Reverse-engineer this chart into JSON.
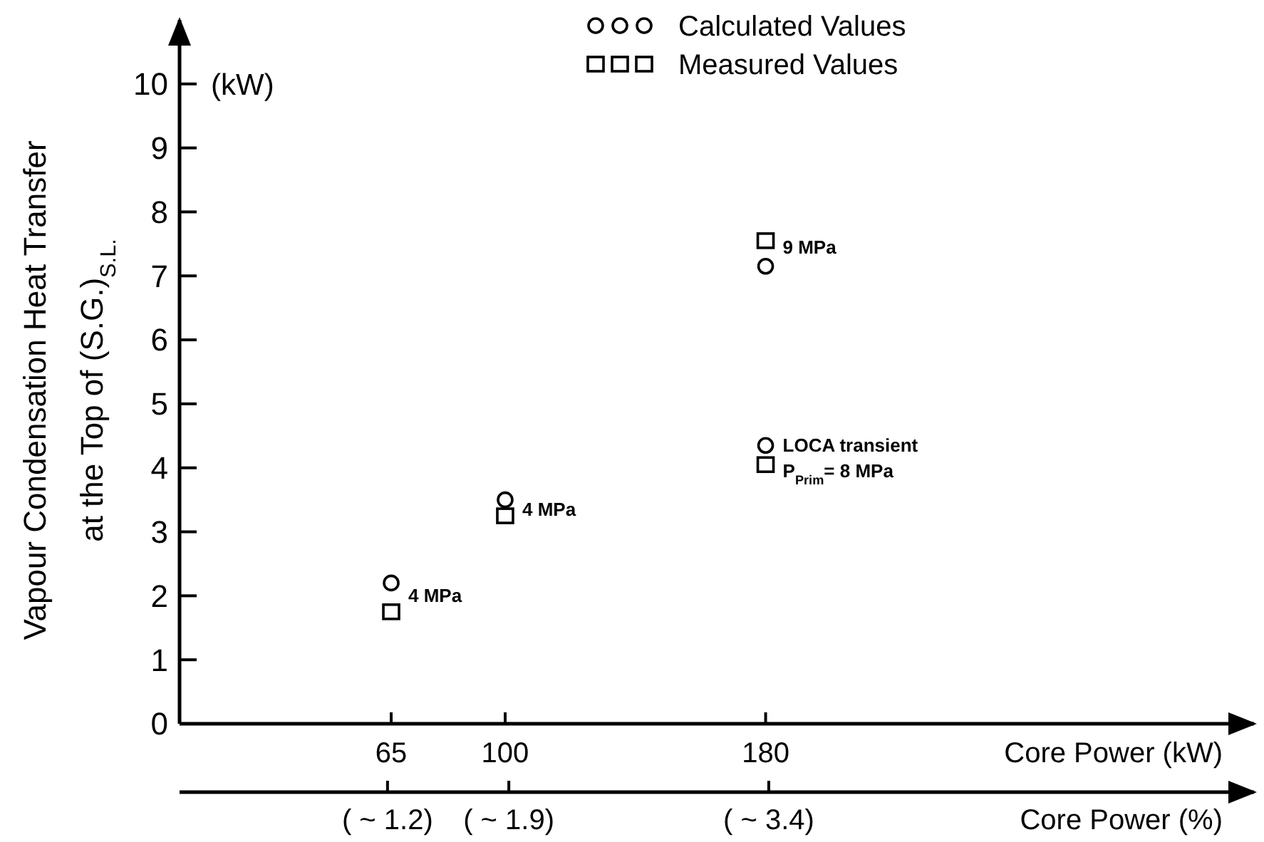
{
  "chart_data": {
    "type": "scatter",
    "ylabel": "Vapour Condensation Heat Transfer\nat the Top of (S.G.)$_{S.L.}$",
    "xlabel": "Core Power (kW)",
    "x2label": "Core Power (%)",
    "xlim": [
      0,
      330
    ],
    "xticks": [
      65,
      100,
      180
    ],
    "x2lim": [
      0,
      6.2
    ],
    "x2ticks": [
      {
        "value": 1.2,
        "label": "( ~ 1.2)"
      },
      {
        "value": 1.9,
        "label": "( ~ 1.9)"
      },
      {
        "value": 3.4,
        "label": "( ~ 3.4)"
      }
    ],
    "ylim": [
      0,
      11
    ],
    "yticks": [
      0,
      1,
      2,
      3,
      4,
      5,
      6,
      7,
      8,
      9,
      10
    ],
    "grid": false,
    "legend": "top right",
    "series": [
      {
        "name": "Calculated Values",
        "color": "#000000",
        "marker": "circle",
        "x": [
          65,
          100,
          180,
          180
        ],
        "values": [
          2.2,
          3.5,
          7.15,
          4.35
        ]
      },
      {
        "name": "Measured Values",
        "color": "#000000",
        "marker": "square",
        "x": [
          65,
          100,
          180,
          180
        ],
        "values": [
          1.75,
          3.25,
          7.55,
          4.05
        ]
      }
    ],
    "annotations": [
      "(kW)",
      {
        "text": "4 MPa",
        "x": 65,
        "y": 2.0
      },
      {
        "text": "4 MPa",
        "x": 100,
        "y": 3.35
      },
      {
        "text": "9 MPa",
        "x": 180,
        "y": 7.45
      },
      {
        "text": "LOCA transient",
        "x": 180,
        "y": 4.35
      },
      {
        "text": "P$_{Prim}$= 8 MPa",
        "x": 180,
        "y": 3.95
      }
    ]
  }
}
